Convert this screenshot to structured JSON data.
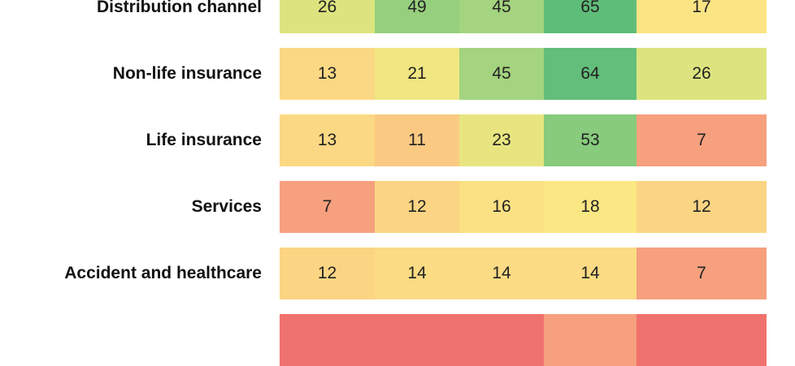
{
  "chart_data": {
    "type": "heatmap",
    "rows": [
      {
        "label": "Distribution channel",
        "values": [
          26,
          49,
          45,
          65,
          17
        ]
      },
      {
        "label": "Non-life insurance",
        "values": [
          13,
          21,
          45,
          64,
          26
        ]
      },
      {
        "label": "Life insurance",
        "values": [
          13,
          11,
          23,
          53,
          7
        ]
      },
      {
        "label": "Services",
        "values": [
          7,
          12,
          16,
          18,
          12
        ]
      },
      {
        "label": "Accident and healthcare",
        "values": [
          12,
          14,
          14,
          14,
          7
        ]
      },
      {
        "label": "",
        "values": [
          null,
          null,
          null,
          null,
          null
        ],
        "colors": [
          "#f0726e",
          "#f0726e",
          "#f0726e",
          "#f6a07e",
          "#f0726e"
        ]
      }
    ],
    "color_scale": {
      "stops": [
        {
          "value": 0,
          "color": "#f0726e"
        },
        {
          "value": 7,
          "color": "#f6a07e"
        },
        {
          "value": 12,
          "color": "#fbd583"
        },
        {
          "value": 18,
          "color": "#fbe784"
        },
        {
          "value": 26,
          "color": "#dde47f"
        },
        {
          "value": 45,
          "color": "#a4d47f"
        },
        {
          "value": 65,
          "color": "#5fbd7a"
        }
      ]
    }
  }
}
